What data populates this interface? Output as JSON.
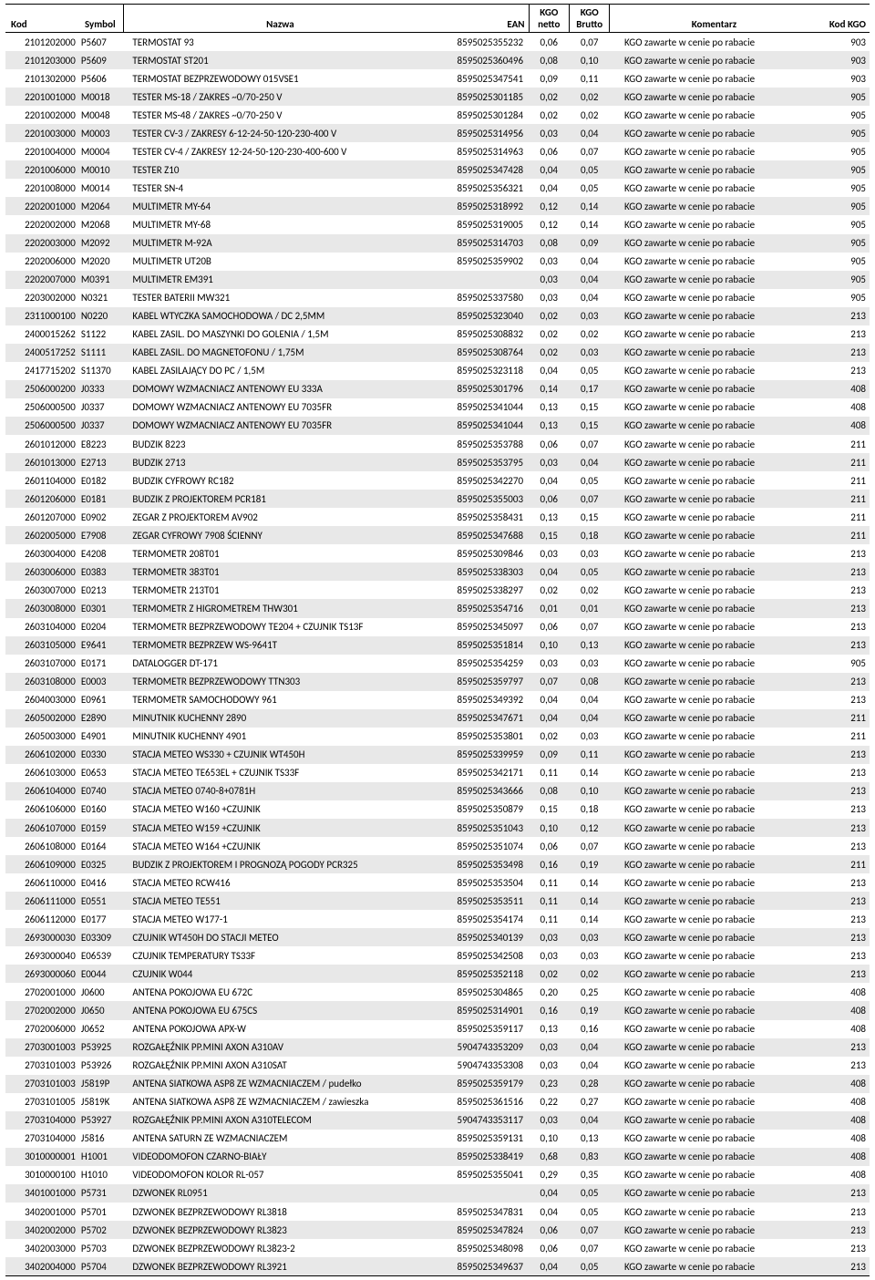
{
  "columns": {
    "kod": "Kod",
    "symbol": "Symbol",
    "nazwa": "Nazwa",
    "ean": "EAN",
    "netto_l1": "KGO",
    "netto_l2": "netto",
    "brutto_l1": "KGO",
    "brutto_l2": "Brutto",
    "komentarz": "Komentarz",
    "kodkgo": "Kod KGO"
  },
  "rows": [
    {
      "kod": "2101202000",
      "symbol": "P5607",
      "nazwa": "TERMOSTAT 93",
      "ean": "8595025355232",
      "netto": "0,06",
      "brutto": "0,07",
      "komentarz": "KGO zawarte w cenie po rabacie",
      "kodkgo": "903"
    },
    {
      "kod": "2101203000",
      "symbol": "P5609",
      "nazwa": "TERMOSTAT ST201",
      "ean": "8595025360496",
      "netto": "0,08",
      "brutto": "0,10",
      "komentarz": "KGO zawarte w cenie po rabacie",
      "kodkgo": "903"
    },
    {
      "kod": "2101302000",
      "symbol": "P5606",
      "nazwa": "TERMOSTAT BEZPRZEWODOWY 015VSE1",
      "ean": "8595025347541",
      "netto": "0,09",
      "brutto": "0,11",
      "komentarz": "KGO zawarte w cenie po rabacie",
      "kodkgo": "903"
    },
    {
      "kod": "2201001000",
      "symbol": "M0018",
      "nazwa": "TESTER MS-18 / ZAKRES ~0/70-250 V",
      "ean": "8595025301185",
      "netto": "0,02",
      "brutto": "0,02",
      "komentarz": "KGO zawarte w cenie po rabacie",
      "kodkgo": "905"
    },
    {
      "kod": "2201002000",
      "symbol": "M0048",
      "nazwa": "TESTER MS-48 / ZAKRES ~0/70-250 V",
      "ean": "8595025301284",
      "netto": "0,02",
      "brutto": "0,02",
      "komentarz": "KGO zawarte w cenie po rabacie",
      "kodkgo": "905"
    },
    {
      "kod": "2201003000",
      "symbol": "M0003",
      "nazwa": "TESTER CV-3 / ZAKRESY 6-12-24-50-120-230-400 V",
      "ean": "8595025314956",
      "netto": "0,03",
      "brutto": "0,04",
      "komentarz": "KGO zawarte w cenie po rabacie",
      "kodkgo": "905"
    },
    {
      "kod": "2201004000",
      "symbol": "M0004",
      "nazwa": "TESTER CV-4 / ZAKRESY 12-24-50-120-230-400-600 V",
      "ean": "8595025314963",
      "netto": "0,06",
      "brutto": "0,07",
      "komentarz": "KGO zawarte w cenie po rabacie",
      "kodkgo": "905"
    },
    {
      "kod": "2201006000",
      "symbol": "M0010",
      "nazwa": "TESTER Z10",
      "ean": "8595025347428",
      "netto": "0,04",
      "brutto": "0,05",
      "komentarz": "KGO zawarte w cenie po rabacie",
      "kodkgo": "905"
    },
    {
      "kod": "2201008000",
      "symbol": "M0014",
      "nazwa": "TESTER SN-4",
      "ean": "8595025356321",
      "netto": "0,04",
      "brutto": "0,05",
      "komentarz": "KGO zawarte w cenie po rabacie",
      "kodkgo": "905"
    },
    {
      "kod": "2202001000",
      "symbol": "M2064",
      "nazwa": "MULTIMETR MY-64",
      "ean": "8595025318992",
      "netto": "0,12",
      "brutto": "0,14",
      "komentarz": "KGO zawarte w cenie po rabacie",
      "kodkgo": "905"
    },
    {
      "kod": "2202002000",
      "symbol": "M2068",
      "nazwa": "MULTIMETR MY-68",
      "ean": "8595025319005",
      "netto": "0,12",
      "brutto": "0,14",
      "komentarz": "KGO zawarte w cenie po rabacie",
      "kodkgo": "905"
    },
    {
      "kod": "2202003000",
      "symbol": "M2092",
      "nazwa": "MULTIMETR M-92A",
      "ean": "8595025314703",
      "netto": "0,08",
      "brutto": "0,09",
      "komentarz": "KGO zawarte w cenie po rabacie",
      "kodkgo": "905"
    },
    {
      "kod": "2202006000",
      "symbol": "M2020",
      "nazwa": "MULTIMETR UT20B",
      "ean": "8595025359902",
      "netto": "0,03",
      "brutto": "0,04",
      "komentarz": "KGO zawarte w cenie po rabacie",
      "kodkgo": "905"
    },
    {
      "kod": "2202007000",
      "symbol": "M0391",
      "nazwa": "MULTIMETR EM391",
      "ean": "",
      "netto": "0,03",
      "brutto": "0,04",
      "komentarz": "KGO zawarte w cenie po rabacie",
      "kodkgo": "905"
    },
    {
      "kod": "2203002000",
      "symbol": "N0321",
      "nazwa": "TESTER BATERII MW321",
      "ean": "8595025337580",
      "netto": "0,03",
      "brutto": "0,04",
      "komentarz": "KGO zawarte w cenie po rabacie",
      "kodkgo": "905"
    },
    {
      "kod": "2311000100",
      "symbol": "N0220",
      "nazwa": "KABEL WTYCZKA SAMOCHODOWA / DC 2,5MM",
      "ean": "8595025323040",
      "netto": "0,02",
      "brutto": "0,03",
      "komentarz": "KGO zawarte w cenie po rabacie",
      "kodkgo": "213"
    },
    {
      "kod": "2400015262",
      "symbol": "S1122",
      "nazwa": "KABEL ZASIL. DO MASZYNKI DO GOLENIA / 1,5M",
      "ean": "8595025308832",
      "netto": "0,02",
      "brutto": "0,02",
      "komentarz": "KGO zawarte w cenie po rabacie",
      "kodkgo": "213"
    },
    {
      "kod": "2400517252",
      "symbol": "S1111",
      "nazwa": "KABEL ZASIL. DO MAGNETOFONU / 1,75M",
      "ean": "8595025308764",
      "netto": "0,02",
      "brutto": "0,03",
      "komentarz": "KGO zawarte w cenie po rabacie",
      "kodkgo": "213"
    },
    {
      "kod": "2417715202",
      "symbol": "S11370",
      "nazwa": "KABEL ZASILAJĄCY DO PC / 1,5M",
      "ean": "8595025323118",
      "netto": "0,04",
      "brutto": "0,05",
      "komentarz": "KGO zawarte w cenie po rabacie",
      "kodkgo": "213"
    },
    {
      "kod": "2506000200",
      "symbol": "J0333",
      "nazwa": "DOMOWY WZMACNIACZ ANTENOWY EU 333A",
      "ean": "8595025301796",
      "netto": "0,14",
      "brutto": "0,17",
      "komentarz": "KGO zawarte w cenie po rabacie",
      "kodkgo": "408"
    },
    {
      "kod": "2506000500",
      "symbol": "J0337",
      "nazwa": "DOMOWY WZMACNIACZ ANTENOWY EU 7035FR",
      "ean": "8595025341044",
      "netto": "0,13",
      "brutto": "0,15",
      "komentarz": "KGO zawarte w cenie po rabacie",
      "kodkgo": "408"
    },
    {
      "kod": "2506000500",
      "symbol": "J0337",
      "nazwa": "DOMOWY WZMACNIACZ ANTENOWY EU 7035FR",
      "ean": "8595025341044",
      "netto": "0,13",
      "brutto": "0,15",
      "komentarz": "KGO zawarte w cenie po rabacie",
      "kodkgo": "408"
    },
    {
      "kod": "2601012000",
      "symbol": "E8223",
      "nazwa": "BUDZIK 8223",
      "ean": "8595025353788",
      "netto": "0,06",
      "brutto": "0,07",
      "komentarz": "KGO zawarte w cenie po rabacie",
      "kodkgo": "211"
    },
    {
      "kod": "2601013000",
      "symbol": "E2713",
      "nazwa": "BUDZIK 2713",
      "ean": "8595025353795",
      "netto": "0,03",
      "brutto": "0,04",
      "komentarz": "KGO zawarte w cenie po rabacie",
      "kodkgo": "211"
    },
    {
      "kod": "2601104000",
      "symbol": "E0182",
      "nazwa": "BUDZIK CYFROWY RC182",
      "ean": "8595025342270",
      "netto": "0,04",
      "brutto": "0,05",
      "komentarz": "KGO zawarte w cenie po rabacie",
      "kodkgo": "211"
    },
    {
      "kod": "2601206000",
      "symbol": "E0181",
      "nazwa": "BUDZIK Z PROJEKTOREM PCR181",
      "ean": "8595025355003",
      "netto": "0,06",
      "brutto": "0,07",
      "komentarz": "KGO zawarte w cenie po rabacie",
      "kodkgo": "211"
    },
    {
      "kod": "2601207000",
      "symbol": "E0902",
      "nazwa": "ZEGAR Z PROJEKTOREM AV902",
      "ean": "8595025358431",
      "netto": "0,13",
      "brutto": "0,15",
      "komentarz": "KGO zawarte w cenie po rabacie",
      "kodkgo": "211"
    },
    {
      "kod": "2602005000",
      "symbol": "E7908",
      "nazwa": "ZEGAR CYFROWY 7908 ŚCIENNY",
      "ean": "8595025347688",
      "netto": "0,15",
      "brutto": "0,18",
      "komentarz": "KGO zawarte w cenie po rabacie",
      "kodkgo": "211"
    },
    {
      "kod": "2603004000",
      "symbol": "E4208",
      "nazwa": "TERMOMETR 208T01",
      "ean": "8595025309846",
      "netto": "0,03",
      "brutto": "0,03",
      "komentarz": "KGO zawarte w cenie po rabacie",
      "kodkgo": "213"
    },
    {
      "kod": "2603006000",
      "symbol": "E0383",
      "nazwa": "TERMOMETR 383T01",
      "ean": "8595025338303",
      "netto": "0,04",
      "brutto": "0,05",
      "komentarz": "KGO zawarte w cenie po rabacie",
      "kodkgo": "213"
    },
    {
      "kod": "2603007000",
      "symbol": "E0213",
      "nazwa": "TERMOMETR 213T01",
      "ean": "8595025338297",
      "netto": "0,02",
      "brutto": "0,02",
      "komentarz": "KGO zawarte w cenie po rabacie",
      "kodkgo": "213"
    },
    {
      "kod": "2603008000",
      "symbol": "E0301",
      "nazwa": "TERMOMETR Z HIGROMETREM THW301",
      "ean": "8595025354716",
      "netto": "0,01",
      "brutto": "0,01",
      "komentarz": "KGO zawarte w cenie po rabacie",
      "kodkgo": "213"
    },
    {
      "kod": "2603104000",
      "symbol": "E0204",
      "nazwa": "TERMOMETR BEZPRZEWODOWY TE204 + CZUJNIK TS13F",
      "ean": "8595025345097",
      "netto": "0,06",
      "brutto": "0,07",
      "komentarz": "KGO zawarte w cenie po rabacie",
      "kodkgo": "213"
    },
    {
      "kod": "2603105000",
      "symbol": "E9641",
      "nazwa": "TERMOMETR BEZPRZEW WS-9641T",
      "ean": "8595025351814",
      "netto": "0,10",
      "brutto": "0,13",
      "komentarz": "KGO zawarte w cenie po rabacie",
      "kodkgo": "213"
    },
    {
      "kod": "2603107000",
      "symbol": "E0171",
      "nazwa": "DATALOGGER DT-171",
      "ean": "8595025354259",
      "netto": "0,03",
      "brutto": "0,03",
      "komentarz": "KGO zawarte w cenie po rabacie",
      "kodkgo": "905"
    },
    {
      "kod": "2603108000",
      "symbol": "E0003",
      "nazwa": "TERMOMETR BEZPRZEWODOWY TTN303",
      "ean": "8595025359797",
      "netto": "0,07",
      "brutto": "0,08",
      "komentarz": "KGO zawarte w cenie po rabacie",
      "kodkgo": "213"
    },
    {
      "kod": "2604003000",
      "symbol": "E0961",
      "nazwa": "TERMOMETR SAMOCHODOWY 961",
      "ean": "8595025349392",
      "netto": "0,04",
      "brutto": "0,04",
      "komentarz": "KGO zawarte w cenie po rabacie",
      "kodkgo": "213"
    },
    {
      "kod": "2605002000",
      "symbol": "E2890",
      "nazwa": "MINUTNIK KUCHENNY 2890",
      "ean": "8595025347671",
      "netto": "0,04",
      "brutto": "0,04",
      "komentarz": "KGO zawarte w cenie po rabacie",
      "kodkgo": "211"
    },
    {
      "kod": "2605003000",
      "symbol": "E4901",
      "nazwa": "MINUTNIK KUCHENNY 4901",
      "ean": "8595025353801",
      "netto": "0,02",
      "brutto": "0,03",
      "komentarz": "KGO zawarte w cenie po rabacie",
      "kodkgo": "211"
    },
    {
      "kod": "2606102000",
      "symbol": "E0330",
      "nazwa": "STACJA METEO WS330 + CZUJNIK WT450H",
      "ean": "8595025339959",
      "netto": "0,09",
      "brutto": "0,11",
      "komentarz": "KGO zawarte w cenie po rabacie",
      "kodkgo": "213"
    },
    {
      "kod": "2606103000",
      "symbol": "E0653",
      "nazwa": "STACJA METEO TE653EL + CZUJNIK TS33F",
      "ean": "8595025342171",
      "netto": "0,11",
      "brutto": "0,14",
      "komentarz": "KGO zawarte w cenie po rabacie",
      "kodkgo": "213"
    },
    {
      "kod": "2606104000",
      "symbol": "E0740",
      "nazwa": "STACJA METEO 0740-8+0781H",
      "ean": "8595025343666",
      "netto": "0,08",
      "brutto": "0,10",
      "komentarz": "KGO zawarte w cenie po rabacie",
      "kodkgo": "213"
    },
    {
      "kod": "2606106000",
      "symbol": "E0160",
      "nazwa": "STACJA METEO W160 +CZUJNIK",
      "ean": "8595025350879",
      "netto": "0,15",
      "brutto": "0,18",
      "komentarz": "KGO zawarte w cenie po rabacie",
      "kodkgo": "213"
    },
    {
      "kod": "2606107000",
      "symbol": "E0159",
      "nazwa": "STACJA METEO W159 +CZUJNIK",
      "ean": "8595025351043",
      "netto": "0,10",
      "brutto": "0,12",
      "komentarz": "KGO zawarte w cenie po rabacie",
      "kodkgo": "213"
    },
    {
      "kod": "2606108000",
      "symbol": "E0164",
      "nazwa": "STACJA METEO W164 +CZUJNIK",
      "ean": "8595025351074",
      "netto": "0,06",
      "brutto": "0,07",
      "komentarz": "KGO zawarte w cenie po rabacie",
      "kodkgo": "213"
    },
    {
      "kod": "2606109000",
      "symbol": "E0325",
      "nazwa": "BUDZIK Z PROJEKTOREM I PROGNOZĄ POGODY PCR325",
      "ean": "8595025353498",
      "netto": "0,16",
      "brutto": "0,19",
      "komentarz": "KGO zawarte w cenie po rabacie",
      "kodkgo": "211"
    },
    {
      "kod": "2606110000",
      "symbol": "E0416",
      "nazwa": "STACJA METEO RCW416",
      "ean": "8595025353504",
      "netto": "0,11",
      "brutto": "0,14",
      "komentarz": "KGO zawarte w cenie po rabacie",
      "kodkgo": "213"
    },
    {
      "kod": "2606111000",
      "symbol": "E0551",
      "nazwa": "STACJA METEO TE551",
      "ean": "8595025353511",
      "netto": "0,11",
      "brutto": "0,14",
      "komentarz": "KGO zawarte w cenie po rabacie",
      "kodkgo": "213"
    },
    {
      "kod": "2606112000",
      "symbol": "E0177",
      "nazwa": "STACJA METEO W177-1",
      "ean": "8595025354174",
      "netto": "0,11",
      "brutto": "0,14",
      "komentarz": "KGO zawarte w cenie po rabacie",
      "kodkgo": "213"
    },
    {
      "kod": "2693000030",
      "symbol": "E03309",
      "nazwa": "CZUJNIK WT450H DO STACJI METEO",
      "ean": "8595025340139",
      "netto": "0,03",
      "brutto": "0,03",
      "komentarz": "KGO zawarte w cenie po rabacie",
      "kodkgo": "213"
    },
    {
      "kod": "2693000040",
      "symbol": "E06539",
      "nazwa": "CZUJNIK TEMPERATURY TS33F",
      "ean": "8595025342508",
      "netto": "0,03",
      "brutto": "0,03",
      "komentarz": "KGO zawarte w cenie po rabacie",
      "kodkgo": "213"
    },
    {
      "kod": "2693000060",
      "symbol": "E0044",
      "nazwa": "CZUJNIK W044",
      "ean": "8595025352118",
      "netto": "0,02",
      "brutto": "0,02",
      "komentarz": "KGO zawarte w cenie po rabacie",
      "kodkgo": "213"
    },
    {
      "kod": "2702001000",
      "symbol": "J0600",
      "nazwa": "ANTENA POKOJOWA EU 672C",
      "ean": "8595025304865",
      "netto": "0,20",
      "brutto": "0,25",
      "komentarz": "KGO zawarte w cenie po rabacie",
      "kodkgo": "408"
    },
    {
      "kod": "2702002000",
      "symbol": "J0650",
      "nazwa": "ANTENA POKOJOWA EU 675CS",
      "ean": "8595025314901",
      "netto": "0,16",
      "brutto": "0,19",
      "komentarz": "KGO zawarte w cenie po rabacie",
      "kodkgo": "408"
    },
    {
      "kod": "2702006000",
      "symbol": "J0652",
      "nazwa": "ANTENA POKOJOWA APX-W",
      "ean": "8595025359117",
      "netto": "0,13",
      "brutto": "0,16",
      "komentarz": "KGO zawarte w cenie po rabacie",
      "kodkgo": "408"
    },
    {
      "kod": "2703001003",
      "symbol": "P53925",
      "nazwa": "ROZGAŁĘŹNIK PP.MINI AXON A310AV",
      "ean": "5904743353209",
      "netto": "0,03",
      "brutto": "0,04",
      "komentarz": "KGO zawarte w cenie po rabacie",
      "kodkgo": "213"
    },
    {
      "kod": "2703101003",
      "symbol": "P53926",
      "nazwa": "ROZGAŁĘŹNIK PP.MINI AXON A310SAT",
      "ean": "5904743353308",
      "netto": "0,03",
      "brutto": "0,04",
      "komentarz": "KGO zawarte w cenie po rabacie",
      "kodkgo": "213"
    },
    {
      "kod": "2703101003",
      "symbol": "J5819P",
      "nazwa": "ANTENA SIATKOWA ASP8 ZE WZMACNIACZEM / pudełko",
      "ean": "8595025359179",
      "netto": "0,23",
      "brutto": "0,28",
      "komentarz": "KGO zawarte w cenie po rabacie",
      "kodkgo": "408"
    },
    {
      "kod": "2703101005",
      "symbol": "J5819K",
      "nazwa": "ANTENA SIATKOWA ASP8 ZE WZMACNIACZEM / zawieszka",
      "ean": "8595025361516",
      "netto": "0,22",
      "brutto": "0,27",
      "komentarz": "KGO zawarte w cenie po rabacie",
      "kodkgo": "408"
    },
    {
      "kod": "2703104000",
      "symbol": "P53927",
      "nazwa": "ROZGAŁĘŹNIK PP.MINI AXON A310TELECOM",
      "ean": "5904743353117",
      "netto": "0,03",
      "brutto": "0,04",
      "komentarz": "KGO zawarte w cenie po rabacie",
      "kodkgo": "408"
    },
    {
      "kod": "2703104000",
      "symbol": "J5816",
      "nazwa": "ANTENA SATURN ZE WZMACNIACZEM",
      "ean": "8595025359131",
      "netto": "0,10",
      "brutto": "0,13",
      "komentarz": "KGO zawarte w cenie po rabacie",
      "kodkgo": "408"
    },
    {
      "kod": "3010000001",
      "symbol": "H1001",
      "nazwa": "VIDEODOMOFON CZARNO-BIAŁY",
      "ean": "8595025338419",
      "netto": "0,68",
      "brutto": "0,83",
      "komentarz": "KGO zawarte w cenie po rabacie",
      "kodkgo": "408"
    },
    {
      "kod": "3010000100",
      "symbol": "H1010",
      "nazwa": "VIDEODOMOFON KOLOR RL-057",
      "ean": "8595025355041",
      "netto": "0,29",
      "brutto": "0,35",
      "komentarz": "KGO zawarte w cenie po rabacie",
      "kodkgo": "408"
    },
    {
      "kod": "3401001000",
      "symbol": "P5731",
      "nazwa": "DZWONEK RL0951",
      "ean": "",
      "netto": "0,04",
      "brutto": "0,05",
      "komentarz": "KGO zawarte w cenie po rabacie",
      "kodkgo": "213"
    },
    {
      "kod": "3402001000",
      "symbol": "P5701",
      "nazwa": "DZWONEK BEZPRZEWODOWY RL3818",
      "ean": "8595025347831",
      "netto": "0,04",
      "brutto": "0,05",
      "komentarz": "KGO zawarte w cenie po rabacie",
      "kodkgo": "213"
    },
    {
      "kod": "3402002000",
      "symbol": "P5702",
      "nazwa": "DZWONEK BEZPRZEWODOWY RL3823",
      "ean": "8595025347824",
      "netto": "0,06",
      "brutto": "0,07",
      "komentarz": "KGO zawarte w cenie po rabacie",
      "kodkgo": "213"
    },
    {
      "kod": "3402003000",
      "symbol": "P5703",
      "nazwa": "DZWONEK BEZPRZEWODOWY RL3823-2",
      "ean": "8595025348098",
      "netto": "0,06",
      "brutto": "0,07",
      "komentarz": "KGO zawarte w cenie po rabacie",
      "kodkgo": "213"
    },
    {
      "kod": "3402004000",
      "symbol": "P5704",
      "nazwa": "DZWONEK BEZPRZEWODOWY RL3921",
      "ean": "8595025349637",
      "netto": "0,04",
      "brutto": "0,05",
      "komentarz": "KGO zawarte w cenie po rabacie",
      "kodkgo": "213"
    }
  ]
}
